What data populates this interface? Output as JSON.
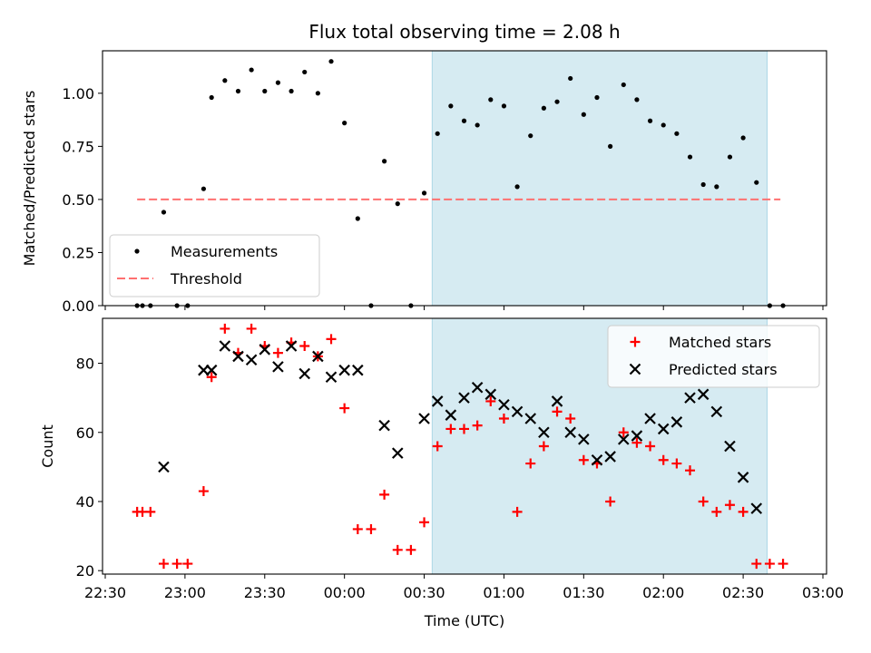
{
  "figure": {
    "title": "Flux total observing time = 2.08 h",
    "xlabel": "Time (UTC)",
    "x_tick_labels": [
      "22:30",
      "23:00",
      "23:30",
      "00:00",
      "00:30",
      "01:00",
      "01:30",
      "02:00",
      "02:30",
      "03:00"
    ],
    "shaded_span": {
      "start": "00:33",
      "end": "02:39",
      "color": "#add8e6"
    }
  },
  "chart_data": [
    {
      "type": "scatter",
      "ylabel": "Matched/Predicted stars",
      "ylim": [
        0.0,
        1.2
      ],
      "y_ticks": [
        0.0,
        0.25,
        0.5,
        0.75,
        1.0
      ],
      "y_tick_labels": [
        "0.00",
        "0.25",
        "0.50",
        "0.75",
        "1.00"
      ],
      "legend_position": "lower-left",
      "series": [
        {
          "name": "Measurements",
          "marker": "dot",
          "color": "#000000",
          "points": [
            [
              "22:42",
              0.0
            ],
            [
              "22:44",
              0.0
            ],
            [
              "22:47",
              0.0
            ],
            [
              "22:52",
              0.44
            ],
            [
              "22:57",
              0.0
            ],
            [
              "23:01",
              0.0
            ],
            [
              "23:07",
              0.55
            ],
            [
              "23:10",
              0.98
            ],
            [
              "23:15",
              1.06
            ],
            [
              "23:20",
              1.01
            ],
            [
              "23:25",
              1.11
            ],
            [
              "23:30",
              1.01
            ],
            [
              "23:35",
              1.05
            ],
            [
              "23:40",
              1.01
            ],
            [
              "23:45",
              1.1
            ],
            [
              "23:50",
              1.0
            ],
            [
              "23:55",
              1.15
            ],
            [
              "00:00",
              0.86
            ],
            [
              "00:05",
              0.41
            ],
            [
              "00:10",
              0.0
            ],
            [
              "00:15",
              0.68
            ],
            [
              "00:20",
              0.48
            ],
            [
              "00:25",
              0.0
            ],
            [
              "00:30",
              0.53
            ],
            [
              "00:35",
              0.81
            ],
            [
              "00:40",
              0.94
            ],
            [
              "00:45",
              0.87
            ],
            [
              "00:50",
              0.85
            ],
            [
              "00:55",
              0.97
            ],
            [
              "01:00",
              0.94
            ],
            [
              "01:05",
              0.56
            ],
            [
              "01:10",
              0.8
            ],
            [
              "01:15",
              0.93
            ],
            [
              "01:20",
              0.96
            ],
            [
              "01:25",
              1.07
            ],
            [
              "01:30",
              0.9
            ],
            [
              "01:35",
              0.98
            ],
            [
              "01:40",
              0.75
            ],
            [
              "01:45",
              1.04
            ],
            [
              "01:50",
              0.97
            ],
            [
              "01:55",
              0.87
            ],
            [
              "02:00",
              0.85
            ],
            [
              "02:05",
              0.81
            ],
            [
              "02:10",
              0.7
            ],
            [
              "02:15",
              0.57
            ],
            [
              "02:20",
              0.56
            ],
            [
              "02:25",
              0.7
            ],
            [
              "02:30",
              0.79
            ],
            [
              "02:35",
              0.58
            ],
            [
              "02:40",
              0.0
            ],
            [
              "02:45",
              0.0
            ]
          ]
        },
        {
          "name": "Threshold",
          "type": "line",
          "style": "dashed",
          "color": "#ff7070",
          "points": [
            [
              "22:42",
              0.5
            ],
            [
              "02:44",
              0.5
            ]
          ]
        }
      ]
    },
    {
      "type": "scatter",
      "ylabel": "Count",
      "ylim": [
        19,
        93
      ],
      "y_ticks": [
        20,
        40,
        60,
        80
      ],
      "y_tick_labels": [
        "20",
        "40",
        "60",
        "80"
      ],
      "legend_position": "upper-right",
      "series": [
        {
          "name": "Matched stars",
          "marker": "plus",
          "color": "#ff0000",
          "points": [
            [
              "22:42",
              37
            ],
            [
              "22:44",
              37
            ],
            [
              "22:47",
              37
            ],
            [
              "22:52",
              22
            ],
            [
              "22:57",
              22
            ],
            [
              "23:01",
              22
            ],
            [
              "23:07",
              43
            ],
            [
              "23:10",
              76
            ],
            [
              "23:15",
              90
            ],
            [
              "23:20",
              83
            ],
            [
              "23:25",
              90
            ],
            [
              "23:30",
              85
            ],
            [
              "23:35",
              83
            ],
            [
              "23:40",
              86
            ],
            [
              "23:45",
              85
            ],
            [
              "23:50",
              82
            ],
            [
              "23:55",
              87
            ],
            [
              "00:00",
              67
            ],
            [
              "00:05",
              32
            ],
            [
              "00:10",
              32
            ],
            [
              "00:15",
              42
            ],
            [
              "00:20",
              26
            ],
            [
              "00:25",
              26
            ],
            [
              "00:30",
              34
            ],
            [
              "00:35",
              56
            ],
            [
              "00:40",
              61
            ],
            [
              "00:45",
              61
            ],
            [
              "00:50",
              62
            ],
            [
              "00:55",
              69
            ],
            [
              "01:00",
              64
            ],
            [
              "01:05",
              37
            ],
            [
              "01:10",
              51
            ],
            [
              "01:15",
              56
            ],
            [
              "01:20",
              66
            ],
            [
              "01:25",
              64
            ],
            [
              "01:30",
              52
            ],
            [
              "01:35",
              51
            ],
            [
              "01:40",
              40
            ],
            [
              "01:45",
              60
            ],
            [
              "01:50",
              57
            ],
            [
              "01:55",
              56
            ],
            [
              "02:00",
              52
            ],
            [
              "02:05",
              51
            ],
            [
              "02:10",
              49
            ],
            [
              "02:15",
              40
            ],
            [
              "02:20",
              37
            ],
            [
              "02:25",
              39
            ],
            [
              "02:30",
              37
            ],
            [
              "02:35",
              22
            ],
            [
              "02:40",
              22
            ],
            [
              "02:45",
              22
            ]
          ]
        },
        {
          "name": "Predicted stars",
          "marker": "x",
          "color": "#000000",
          "points": [
            [
              "22:52",
              50
            ],
            [
              "23:07",
              78
            ],
            [
              "23:10",
              78
            ],
            [
              "23:15",
              85
            ],
            [
              "23:20",
              82
            ],
            [
              "23:25",
              81
            ],
            [
              "23:30",
              84
            ],
            [
              "23:35",
              79
            ],
            [
              "23:40",
              85
            ],
            [
              "23:45",
              77
            ],
            [
              "23:50",
              82
            ],
            [
              "23:55",
              76
            ],
            [
              "00:00",
              78
            ],
            [
              "00:05",
              78
            ],
            [
              "00:15",
              62
            ],
            [
              "00:20",
              54
            ],
            [
              "00:30",
              64
            ],
            [
              "00:35",
              69
            ],
            [
              "00:40",
              65
            ],
            [
              "00:45",
              70
            ],
            [
              "00:50",
              73
            ],
            [
              "00:55",
              71
            ],
            [
              "01:00",
              68
            ],
            [
              "01:05",
              66
            ],
            [
              "01:10",
              64
            ],
            [
              "01:15",
              60
            ],
            [
              "01:20",
              69
            ],
            [
              "01:25",
              60
            ],
            [
              "01:30",
              58
            ],
            [
              "01:35",
              52
            ],
            [
              "01:40",
              53
            ],
            [
              "01:45",
              58
            ],
            [
              "01:50",
              59
            ],
            [
              "01:55",
              64
            ],
            [
              "02:00",
              61
            ],
            [
              "02:05",
              63
            ],
            [
              "02:10",
              70
            ],
            [
              "02:15",
              71
            ],
            [
              "02:20",
              66
            ],
            [
              "02:25",
              56
            ],
            [
              "02:30",
              47
            ],
            [
              "02:35",
              38
            ]
          ]
        }
      ]
    }
  ]
}
